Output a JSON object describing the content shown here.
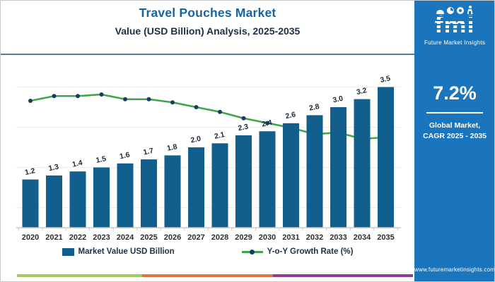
{
  "header": {
    "title": "Travel Pouches Market",
    "subtitle": "Value (USD Billion) Analysis, 2025-2035"
  },
  "chart_data": {
    "type": "bar",
    "title": "Travel Pouches Market",
    "subtitle": "Value (USD Billion) Analysis, 2025-2035",
    "categories": [
      "2020",
      "2021",
      "2022",
      "2023",
      "2024",
      "2025",
      "2026",
      "2027",
      "2028",
      "2029",
      "2030",
      "2031",
      "2032",
      "2033",
      "2034",
      "2035"
    ],
    "series": [
      {
        "name": "Market Value USD Billion",
        "type": "bar",
        "color": "#125E8C",
        "values": [
          1.2,
          1.3,
          1.4,
          1.5,
          1.6,
          1.7,
          1.8,
          2.0,
          2.1,
          2.3,
          2.4,
          2.6,
          2.8,
          3.0,
          3.2,
          3.5
        ]
      },
      {
        "name": "Y-o-Y Growth Rate (%)",
        "type": "line",
        "color": "#3FA548",
        "marker_color": "#1D3A5F",
        "values": [
          8.0,
          8.3,
          8.3,
          8.4,
          8.1,
          8.1,
          7.9,
          7.6,
          7.3,
          6.9,
          6.6,
          6.3,
          5.9,
          6.0,
          5.6,
          5.7
        ]
      }
    ],
    "bar_axis": {
      "min": 0,
      "max": 4
    },
    "line_axis": {
      "min": 0,
      "max": 10
    },
    "grid": true,
    "legend_position": "bottom",
    "label_color": "#1c2b3a",
    "year_color": "#2e2e2e",
    "grid_color": "#ececec",
    "axis_color": "#c9c9c9"
  },
  "right_panel": {
    "logo_text": "fmi",
    "logo_caption": "Future Market Insights",
    "cagr_value": "7.2%",
    "cagr_label_line1": "Global Market,",
    "cagr_label_line2": "CAGR 2025 - 2035",
    "website": "www.futuremarketinsights.com",
    "background_color": "#1B75BC"
  },
  "footer_stripe": {
    "colors": [
      "#A3C95F",
      "#E0714A",
      "#8E3D97"
    ],
    "widths": [
      177,
      185,
      198
    ]
  }
}
